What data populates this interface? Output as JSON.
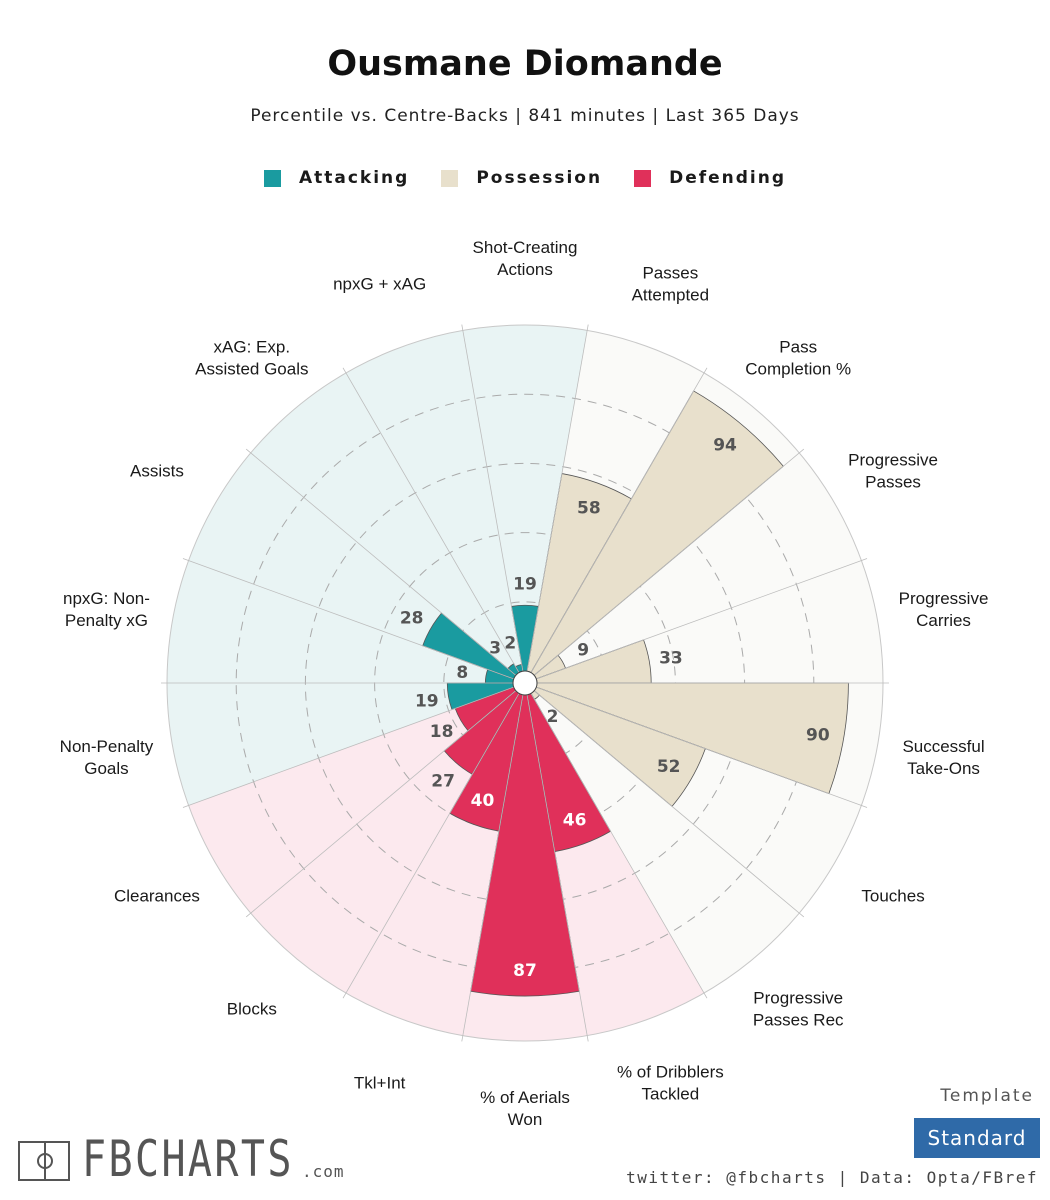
{
  "header": {
    "title": "Ousmane Diomande",
    "subtitle": "Percentile vs. Centre-Backs | 841 minutes | Last 365 Days"
  },
  "legend": [
    {
      "label": "Attacking",
      "color": "#1a9ba0"
    },
    {
      "label": "Possession",
      "color": "#e8e0cc"
    },
    {
      "label": "Defending",
      "color": "#e0305a"
    }
  ],
  "chart_data": {
    "type": "polar-bar",
    "scale": [
      0,
      100
    ],
    "series": [
      {
        "group": "Attacking",
        "items": [
          {
            "label": "Shot-Creating Actions",
            "value": 19
          },
          {
            "label": "Passes Attempted",
            "value": 58,
            "group": "Possession"
          }
        ]
      }
    ],
    "categories": [
      {
        "label": "Shot-Creating Actions",
        "value": 19,
        "group": "Attacking"
      },
      {
        "label": "Passes Attempted",
        "value": 58,
        "group": "Possession"
      },
      {
        "label": "Pass Completion %",
        "value": 94,
        "group": "Possession"
      },
      {
        "label": "Progressive Passes",
        "value": 9,
        "group": "Possession"
      },
      {
        "label": "Progressive Carries",
        "value": 33,
        "group": "Possession"
      },
      {
        "label": "Successful Take-Ons",
        "value": 90,
        "group": "Possession"
      },
      {
        "label": "Touches",
        "value": 52,
        "group": "Possession"
      },
      {
        "label": "Progressive Passes Rec",
        "value": 2,
        "group": "Possession"
      },
      {
        "label": "% of Dribblers Tackled",
        "value": 46,
        "group": "Defending"
      },
      {
        "label": "% of Aerials Won",
        "value": 87,
        "group": "Defending"
      },
      {
        "label": "Tkl+Int",
        "value": 40,
        "group": "Defending"
      },
      {
        "label": "Blocks",
        "value": 27,
        "group": "Defending"
      },
      {
        "label": "Clearances",
        "value": 18,
        "group": "Defending"
      },
      {
        "label": "Non-Penalty Goals",
        "value": 19,
        "group": "Attacking"
      },
      {
        "label": "npxG: Non-Penalty xG",
        "value": 8,
        "group": "Attacking"
      },
      {
        "label": "Assists",
        "value": 28,
        "group": "Attacking"
      },
      {
        "label": "xAG: Exp. Assisted Goals",
        "value": 3,
        "group": "Attacking"
      },
      {
        "label": "npxG + xAG",
        "value": 2,
        "group": "Attacking"
      }
    ],
    "colors": {
      "Attacking": {
        "bar": "#1a9ba0",
        "bg": "#e9f4f4",
        "text_on_bar": "#555555"
      },
      "Possession": {
        "bar": "#e8e0cc",
        "bg": "#fafaf8",
        "text_on_bar": "#555555"
      },
      "Defending": {
        "bar": "#e0305a",
        "bg": "#fce9ee",
        "text_on_bar": "#ffffff"
      }
    },
    "grid": true
  },
  "branding": {
    "logo_text": "FBCHARTS",
    "logo_domain": ".com",
    "template_label": "Template",
    "template_value": "Standard",
    "footer": "twitter: @fbcharts | Data: Opta/FBref"
  }
}
